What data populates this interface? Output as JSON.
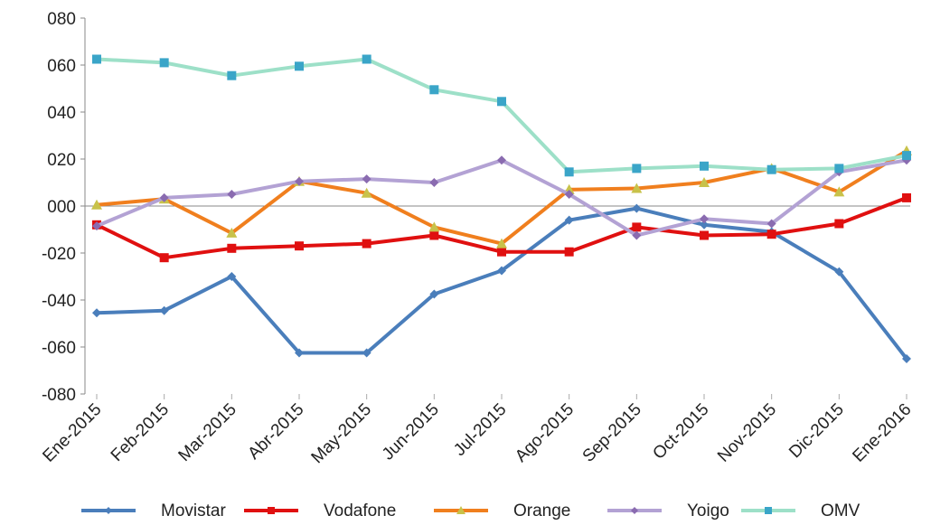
{
  "chart_data": {
    "type": "line",
    "title": "",
    "xlabel": "",
    "ylabel": "",
    "categories": [
      "Ene-2015",
      "Feb-2015",
      "Mar-2015",
      "Abr-2015",
      "May-2015",
      "Jun-2015",
      "Jul-2015",
      "Ago-2015",
      "Sep-2015",
      "Oct-2015",
      "Nov-2015",
      "Dic-2015",
      "Ene-2016"
    ],
    "ylim": [
      -80,
      80
    ],
    "yticks": [
      80,
      60,
      40,
      20,
      0,
      -20,
      -40,
      -60,
      -80
    ],
    "ytick_labels": [
      "080",
      "060",
      "040",
      "020",
      "000",
      "-020",
      "-040",
      "-060",
      "-080"
    ],
    "grid": false,
    "zero_line": true,
    "legend_position": "bottom",
    "series": [
      {
        "name": "Movistar",
        "color": "#4a7ebb",
        "marker": "diamond",
        "values": [
          -45.5,
          -44.5,
          -30,
          -62.5,
          -62.5,
          -37.5,
          -27.5,
          -6,
          -1,
          -8,
          -11,
          -28,
          -65
        ]
      },
      {
        "name": "Vodafone",
        "color": "#e01010",
        "marker": "square",
        "values": [
          -8,
          -22,
          -18,
          -17,
          -16,
          -12.5,
          -19.5,
          -19.5,
          -9,
          -12.5,
          -12,
          -7.5,
          3.5
        ]
      },
      {
        "name": "Orange",
        "color": "#f07f1e",
        "marker": "triangle",
        "values": [
          0.5,
          3,
          -11.5,
          10.5,
          5.5,
          -9,
          -16,
          7,
          7.5,
          10,
          16,
          6,
          23.5
        ]
      },
      {
        "name": "Yoigo",
        "color": "#b3a2d4",
        "marker": "diamond",
        "values": [
          -8.5,
          3.5,
          5,
          10.5,
          11.5,
          10,
          19.5,
          5,
          -12.5,
          -5.5,
          -7.5,
          14.5,
          19.5
        ]
      },
      {
        "name": "OMV",
        "color": "#9de0c8",
        "marker": "square",
        "values": [
          62.5,
          61,
          55.5,
          59.5,
          62.5,
          49.5,
          44.5,
          14.5,
          16,
          17,
          15.5,
          16,
          21.5
        ]
      }
    ]
  }
}
